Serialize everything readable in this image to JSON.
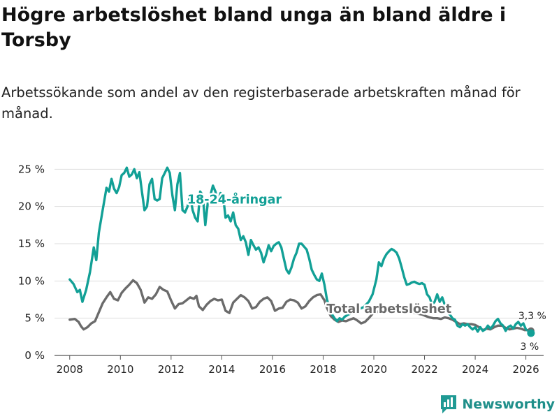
{
  "header": {
    "title": "Högre arbetslöshet bland unga än bland äldre i Torsby",
    "subtitle": "Arbetssökande som andel av den registerbaserade arbetskraften månad för månad."
  },
  "brand": {
    "name": "Newsworthy",
    "icon": "bar-chart-logo-icon",
    "color": "#1f9a94"
  },
  "colors": {
    "youth": "#12a096",
    "total": "#6b6b6b",
    "grid": "#dddddd"
  },
  "chart_data": {
    "type": "line",
    "x_ticks": [
      "2008",
      "2010",
      "2012",
      "2014",
      "2016",
      "2018",
      "2020",
      "2022",
      "2024",
      "2026"
    ],
    "y_ticks": [
      "0 %",
      "5 %",
      "10 %",
      "15 %",
      "20 %",
      "25 %"
    ],
    "xlim": [
      2007.4,
      2026.7
    ],
    "ylim": [
      0,
      25.5
    ],
    "series": [
      {
        "name": "18-24-åringar",
        "label": "18-24-åringar",
        "color": "#12a096",
        "end_label": "3 %",
        "points": [
          [
            2008.0,
            10.2
          ],
          [
            2008.15,
            9.6
          ],
          [
            2008.3,
            8.5
          ],
          [
            2008.4,
            8.8
          ],
          [
            2008.5,
            7.2
          ],
          [
            2008.65,
            8.8
          ],
          [
            2008.8,
            11.2
          ],
          [
            2008.95,
            14.5
          ],
          [
            2009.05,
            12.8
          ],
          [
            2009.15,
            16.5
          ],
          [
            2009.3,
            19.5
          ],
          [
            2009.45,
            22.5
          ],
          [
            2009.55,
            22.0
          ],
          [
            2009.65,
            23.7
          ],
          [
            2009.75,
            22.4
          ],
          [
            2009.85,
            21.8
          ],
          [
            2009.95,
            22.6
          ],
          [
            2010.05,
            24.2
          ],
          [
            2010.15,
            24.5
          ],
          [
            2010.25,
            25.2
          ],
          [
            2010.35,
            24.0
          ],
          [
            2010.45,
            24.3
          ],
          [
            2010.55,
            25.0
          ],
          [
            2010.65,
            23.8
          ],
          [
            2010.75,
            24.6
          ],
          [
            2010.85,
            22.0
          ],
          [
            2010.95,
            19.5
          ],
          [
            2011.05,
            20.0
          ],
          [
            2011.15,
            23.0
          ],
          [
            2011.25,
            23.7
          ],
          [
            2011.35,
            21.0
          ],
          [
            2011.45,
            20.8
          ],
          [
            2011.55,
            21.0
          ],
          [
            2011.65,
            23.8
          ],
          [
            2011.75,
            24.5
          ],
          [
            2011.85,
            25.2
          ],
          [
            2011.95,
            24.5
          ],
          [
            2012.05,
            21.5
          ],
          [
            2012.15,
            19.5
          ],
          [
            2012.25,
            23.0
          ],
          [
            2012.35,
            24.5
          ],
          [
            2012.45,
            19.5
          ],
          [
            2012.55,
            19.2
          ],
          [
            2012.65,
            20.0
          ],
          [
            2012.75,
            21.5
          ],
          [
            2012.85,
            19.5
          ],
          [
            2012.95,
            18.5
          ],
          [
            2013.05,
            18.0
          ],
          [
            2013.15,
            22.0
          ],
          [
            2013.25,
            21.5
          ],
          [
            2013.35,
            17.5
          ],
          [
            2013.45,
            20.5
          ],
          [
            2013.55,
            21.5
          ],
          [
            2013.65,
            22.8
          ],
          [
            2013.75,
            22.0
          ],
          [
            2013.85,
            20.5
          ],
          [
            2013.95,
            21.8
          ],
          [
            2014.05,
            21.5
          ],
          [
            2014.15,
            18.5
          ],
          [
            2014.25,
            18.8
          ],
          [
            2014.35,
            18.0
          ],
          [
            2014.45,
            19.2
          ],
          [
            2014.55,
            17.5
          ],
          [
            2014.65,
            17.0
          ],
          [
            2014.75,
            15.5
          ],
          [
            2014.85,
            16.0
          ],
          [
            2014.95,
            15.2
          ],
          [
            2015.05,
            13.5
          ],
          [
            2015.15,
            15.5
          ],
          [
            2015.25,
            14.8
          ],
          [
            2015.35,
            14.2
          ],
          [
            2015.45,
            14.5
          ],
          [
            2015.55,
            13.8
          ],
          [
            2015.65,
            12.5
          ],
          [
            2015.75,
            13.5
          ],
          [
            2015.85,
            14.8
          ],
          [
            2015.95,
            14.0
          ],
          [
            2016.05,
            14.7
          ],
          [
            2016.15,
            15.0
          ],
          [
            2016.25,
            15.2
          ],
          [
            2016.35,
            14.5
          ],
          [
            2016.45,
            13.0
          ],
          [
            2016.55,
            11.5
          ],
          [
            2016.65,
            11.0
          ],
          [
            2016.75,
            11.8
          ],
          [
            2016.85,
            13.0
          ],
          [
            2016.95,
            13.8
          ],
          [
            2017.05,
            15.0
          ],
          [
            2017.15,
            15.0
          ],
          [
            2017.25,
            14.6
          ],
          [
            2017.35,
            14.2
          ],
          [
            2017.45,
            13.0
          ],
          [
            2017.55,
            11.5
          ],
          [
            2017.65,
            10.8
          ],
          [
            2017.75,
            10.2
          ],
          [
            2017.85,
            10.0
          ],
          [
            2017.95,
            11.0
          ],
          [
            2018.05,
            9.5
          ],
          [
            2018.15,
            7.5
          ],
          [
            2018.25,
            6.5
          ],
          [
            2018.35,
            5.5
          ],
          [
            2018.45,
            5.0
          ],
          [
            2018.55,
            4.6
          ],
          [
            2018.65,
            5.0
          ],
          [
            2018.75,
            4.8
          ],
          [
            2018.85,
            5.2
          ],
          [
            2019.0,
            5.5
          ],
          [
            2019.2,
            5.8
          ],
          [
            2019.4,
            6.2
          ],
          [
            2019.6,
            6.5
          ],
          [
            2019.8,
            7.2
          ],
          [
            2019.95,
            8.2
          ],
          [
            2020.1,
            10.2
          ],
          [
            2020.2,
            12.5
          ],
          [
            2020.3,
            12.0
          ],
          [
            2020.4,
            13.0
          ],
          [
            2020.5,
            13.6
          ],
          [
            2020.6,
            14.0
          ],
          [
            2020.7,
            14.3
          ],
          [
            2020.8,
            14.1
          ],
          [
            2020.9,
            13.8
          ],
          [
            2021.0,
            13.0
          ],
          [
            2021.1,
            11.8
          ],
          [
            2021.2,
            10.5
          ],
          [
            2021.3,
            9.5
          ],
          [
            2021.4,
            9.6
          ],
          [
            2021.5,
            9.8
          ],
          [
            2021.6,
            9.9
          ],
          [
            2021.7,
            9.7
          ],
          [
            2021.8,
            9.6
          ],
          [
            2021.9,
            9.7
          ],
          [
            2022.0,
            9.5
          ],
          [
            2022.1,
            8.2
          ],
          [
            2022.2,
            7.8
          ],
          [
            2022.3,
            6.8
          ],
          [
            2022.4,
            7.2
          ],
          [
            2022.5,
            8.2
          ],
          [
            2022.6,
            7.2
          ],
          [
            2022.7,
            7.8
          ],
          [
            2022.8,
            6.8
          ],
          [
            2022.9,
            5.8
          ],
          [
            2023.0,
            5.5
          ],
          [
            2023.1,
            5.0
          ],
          [
            2023.2,
            4.8
          ],
          [
            2023.3,
            4.0
          ],
          [
            2023.4,
            3.8
          ],
          [
            2023.5,
            4.2
          ],
          [
            2023.6,
            4.0
          ],
          [
            2023.7,
            4.2
          ],
          [
            2023.8,
            3.8
          ],
          [
            2023.9,
            3.5
          ],
          [
            2024.0,
            3.8
          ],
          [
            2024.1,
            3.2
          ],
          [
            2024.2,
            3.8
          ],
          [
            2024.3,
            3.3
          ],
          [
            2024.4,
            3.5
          ],
          [
            2024.5,
            4.0
          ],
          [
            2024.6,
            3.6
          ],
          [
            2024.7,
            4.0
          ],
          [
            2024.8,
            4.6
          ],
          [
            2024.9,
            4.9
          ],
          [
            2025.0,
            4.3
          ],
          [
            2025.1,
            4.0
          ],
          [
            2025.2,
            3.3
          ],
          [
            2025.3,
            3.8
          ],
          [
            2025.4,
            4.0
          ],
          [
            2025.5,
            3.6
          ],
          [
            2025.6,
            4.2
          ],
          [
            2025.7,
            4.5
          ],
          [
            2025.8,
            4.0
          ],
          [
            2025.9,
            4.3
          ],
          [
            2026.0,
            3.5
          ],
          [
            2026.1,
            3.3
          ],
          [
            2026.2,
            3.0
          ]
        ]
      },
      {
        "name": "Total arbetslöshet",
        "label": "Total arbetslöshet",
        "color": "#6b6b6b",
        "end_label": "3,3 %",
        "points": [
          [
            2008.0,
            4.8
          ],
          [
            2008.2,
            4.9
          ],
          [
            2008.35,
            4.5
          ],
          [
            2008.45,
            3.9
          ],
          [
            2008.55,
            3.5
          ],
          [
            2008.7,
            3.8
          ],
          [
            2008.85,
            4.3
          ],
          [
            2009.0,
            4.6
          ],
          [
            2009.15,
            5.8
          ],
          [
            2009.3,
            7.0
          ],
          [
            2009.45,
            7.8
          ],
          [
            2009.6,
            8.5
          ],
          [
            2009.75,
            7.6
          ],
          [
            2009.9,
            7.4
          ],
          [
            2010.05,
            8.4
          ],
          [
            2010.2,
            9.0
          ],
          [
            2010.35,
            9.5
          ],
          [
            2010.5,
            10.1
          ],
          [
            2010.65,
            9.7
          ],
          [
            2010.8,
            8.8
          ],
          [
            2010.95,
            7.1
          ],
          [
            2011.1,
            7.8
          ],
          [
            2011.25,
            7.6
          ],
          [
            2011.4,
            8.2
          ],
          [
            2011.55,
            9.2
          ],
          [
            2011.7,
            8.8
          ],
          [
            2011.85,
            8.6
          ],
          [
            2012.0,
            7.4
          ],
          [
            2012.15,
            6.3
          ],
          [
            2012.3,
            6.9
          ],
          [
            2012.45,
            7.0
          ],
          [
            2012.6,
            7.4
          ],
          [
            2012.75,
            7.8
          ],
          [
            2012.9,
            7.6
          ],
          [
            2013.0,
            8.0
          ],
          [
            2013.1,
            6.6
          ],
          [
            2013.25,
            6.1
          ],
          [
            2013.4,
            6.8
          ],
          [
            2013.55,
            7.3
          ],
          [
            2013.7,
            7.6
          ],
          [
            2013.85,
            7.4
          ],
          [
            2014.0,
            7.5
          ],
          [
            2014.15,
            6.0
          ],
          [
            2014.3,
            5.7
          ],
          [
            2014.45,
            7.1
          ],
          [
            2014.6,
            7.6
          ],
          [
            2014.75,
            8.1
          ],
          [
            2014.9,
            7.8
          ],
          [
            2015.05,
            7.3
          ],
          [
            2015.2,
            6.3
          ],
          [
            2015.35,
            6.5
          ],
          [
            2015.5,
            7.2
          ],
          [
            2015.65,
            7.6
          ],
          [
            2015.8,
            7.8
          ],
          [
            2015.95,
            7.3
          ],
          [
            2016.1,
            6.0
          ],
          [
            2016.25,
            6.3
          ],
          [
            2016.4,
            6.4
          ],
          [
            2016.55,
            7.2
          ],
          [
            2016.7,
            7.5
          ],
          [
            2016.85,
            7.4
          ],
          [
            2017.0,
            7.1
          ],
          [
            2017.15,
            6.3
          ],
          [
            2017.3,
            6.6
          ],
          [
            2017.45,
            7.3
          ],
          [
            2017.6,
            7.8
          ],
          [
            2017.75,
            8.1
          ],
          [
            2017.9,
            8.2
          ],
          [
            2018.05,
            7.4
          ],
          [
            2018.15,
            6.4
          ],
          [
            2018.3,
            5.3
          ],
          [
            2018.45,
            4.8
          ],
          [
            2018.6,
            4.5
          ],
          [
            2018.75,
            4.7
          ],
          [
            2018.9,
            4.6
          ],
          [
            2019.05,
            4.8
          ],
          [
            2019.2,
            5.0
          ],
          [
            2019.35,
            4.7
          ],
          [
            2019.5,
            4.3
          ],
          [
            2019.65,
            4.5
          ],
          [
            2019.8,
            5.0
          ],
          [
            2019.95,
            5.6
          ],
          [
            2020.1,
            5.8
          ],
          [
            2020.25,
            6.0
          ],
          [
            2020.4,
            6.2
          ],
          [
            2020.55,
            6.2
          ],
          [
            2020.7,
            6.5
          ],
          [
            2020.85,
            6.3
          ],
          [
            2021.0,
            6.2
          ],
          [
            2021.15,
            6.0
          ],
          [
            2021.3,
            5.9
          ],
          [
            2021.45,
            5.8
          ],
          [
            2021.6,
            5.7
          ],
          [
            2021.75,
            5.6
          ],
          [
            2021.9,
            5.5
          ],
          [
            2022.05,
            5.3
          ],
          [
            2022.2,
            5.1
          ],
          [
            2022.35,
            5.0
          ],
          [
            2022.5,
            5.0
          ],
          [
            2022.65,
            4.9
          ],
          [
            2022.8,
            5.1
          ],
          [
            2022.95,
            5.0
          ],
          [
            2023.1,
            4.8
          ],
          [
            2023.25,
            4.5
          ],
          [
            2023.4,
            4.2
          ],
          [
            2023.55,
            4.3
          ],
          [
            2023.7,
            4.2
          ],
          [
            2023.85,
            4.2
          ],
          [
            2024.0,
            4.1
          ],
          [
            2024.15,
            3.8
          ],
          [
            2024.3,
            3.4
          ],
          [
            2024.45,
            3.6
          ],
          [
            2024.6,
            3.5
          ],
          [
            2024.75,
            3.8
          ],
          [
            2024.9,
            4.0
          ],
          [
            2025.05,
            4.0
          ],
          [
            2025.2,
            3.7
          ],
          [
            2025.35,
            3.5
          ],
          [
            2025.5,
            3.6
          ],
          [
            2025.65,
            3.7
          ],
          [
            2025.8,
            3.6
          ],
          [
            2025.95,
            3.4
          ],
          [
            2026.1,
            3.4
          ],
          [
            2026.2,
            3.3
          ]
        ]
      }
    ]
  }
}
